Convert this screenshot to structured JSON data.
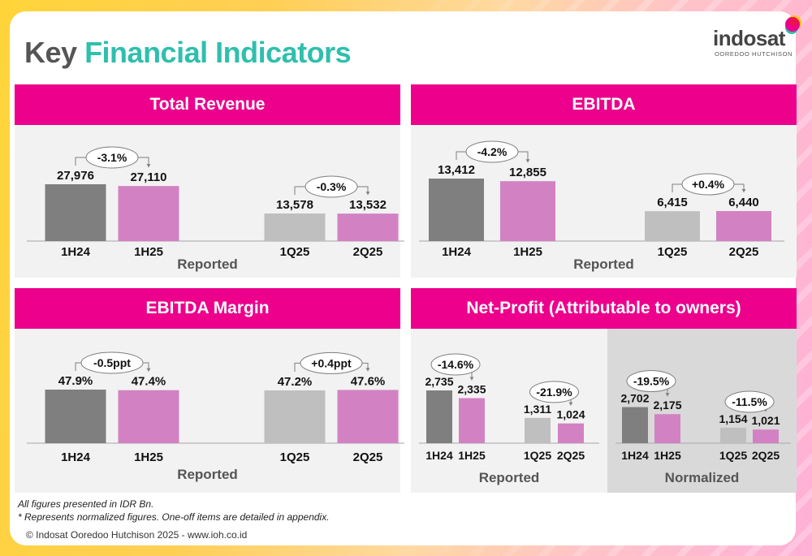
{
  "title": {
    "part1": "Key",
    "part2": "Financial Indicators"
  },
  "logo": {
    "word": "indosat",
    "sub": "OOREDOO HUTCHISON"
  },
  "colors": {
    "accent": "#ec008c",
    "title_teal": "#2fbfad",
    "bar_prior_half": "#7f7f7f",
    "bar_current": "#d282c3",
    "bar_prior_quarter": "#bfbfbf",
    "panel_bg": "#f2f2f2",
    "normalized_bg": "#d9d9d9"
  },
  "panels": [
    {
      "title": "Total Revenue",
      "section_labels": [
        "Reported"
      ]
    },
    {
      "title": "EBITDA",
      "section_labels": [
        "Reported"
      ]
    },
    {
      "title": "EBITDA Margin",
      "section_labels": [
        "Reported"
      ]
    },
    {
      "title": "Net-Profit (Attributable to owners)",
      "section_labels": [
        "Reported",
        "Normalized"
      ]
    }
  ],
  "footnotes": {
    "line1": "All figures presented in IDR Bn.",
    "line2": "* Represents normalized figures. One-off items are detailed in appendix.",
    "copyright": "© Indosat Ooredoo Hutchison 2025 - www.ioh.co.id"
  },
  "chart_data": [
    {
      "type": "bar",
      "title": "Total Revenue",
      "xlabel": "Reported",
      "unit": "IDR Bn",
      "categories": [
        "1H24",
        "1H25",
        "1Q25",
        "2Q25"
      ],
      "values": [
        27976,
        27110,
        13578,
        13532
      ],
      "labels": [
        "27,976",
        "27,110",
        "13,578",
        "13,532"
      ],
      "changes": [
        {
          "from": "1H24",
          "to": "1H25",
          "label": "-3.1%"
        },
        {
          "from": "1Q25",
          "to": "2Q25",
          "label": "-0.3%"
        }
      ]
    },
    {
      "type": "bar",
      "title": "EBITDA",
      "xlabel": "Reported",
      "unit": "IDR Bn",
      "categories": [
        "1H24",
        "1H25",
        "1Q25",
        "2Q25"
      ],
      "values": [
        13412,
        12855,
        6415,
        6440
      ],
      "labels": [
        "13,412",
        "12,855",
        "6,415",
        "6,440"
      ],
      "changes": [
        {
          "from": "1H24",
          "to": "1H25",
          "label": "-4.2%"
        },
        {
          "from": "1Q25",
          "to": "2Q25",
          "label": "+0.4%"
        }
      ]
    },
    {
      "type": "bar",
      "title": "EBITDA Margin",
      "xlabel": "Reported",
      "unit": "%",
      "categories": [
        "1H24",
        "1H25",
        "1Q25",
        "2Q25"
      ],
      "values": [
        47.9,
        47.4,
        47.2,
        47.6
      ],
      "labels": [
        "47.9%",
        "47.4%",
        "47.2%",
        "47.6%"
      ],
      "changes": [
        {
          "from": "1H24",
          "to": "1H25",
          "label": "-0.5ppt"
        },
        {
          "from": "1Q25",
          "to": "2Q25",
          "label": "+0.4ppt"
        }
      ]
    },
    {
      "type": "bar",
      "title": "Net-Profit (Attributable to owners)",
      "unit": "IDR Bn",
      "groups": [
        {
          "xlabel": "Reported",
          "categories": [
            "1H24",
            "1H25",
            "1Q25",
            "2Q25"
          ],
          "values": [
            2735,
            2335,
            1311,
            1024
          ],
          "labels": [
            "2,735",
            "2,335",
            "1,311",
            "1,024"
          ],
          "changes": [
            {
              "from": "1H24",
              "to": "1H25",
              "label": "-14.6%"
            },
            {
              "from": "1Q25",
              "to": "2Q25",
              "label": "-21.9%"
            }
          ]
        },
        {
          "xlabel": "Normalized",
          "categories": [
            "1H24",
            "1H25",
            "1Q25",
            "2Q25"
          ],
          "values": [
            2702,
            2175,
            1154,
            1021
          ],
          "labels": [
            "2,702",
            "2,175",
            "1,154",
            "1,021"
          ],
          "changes": [
            {
              "from": "1H24",
              "to": "1H25",
              "label": "-19.5%"
            },
            {
              "from": "1Q25",
              "to": "2Q25",
              "label": "-11.5%"
            }
          ]
        }
      ]
    }
  ]
}
